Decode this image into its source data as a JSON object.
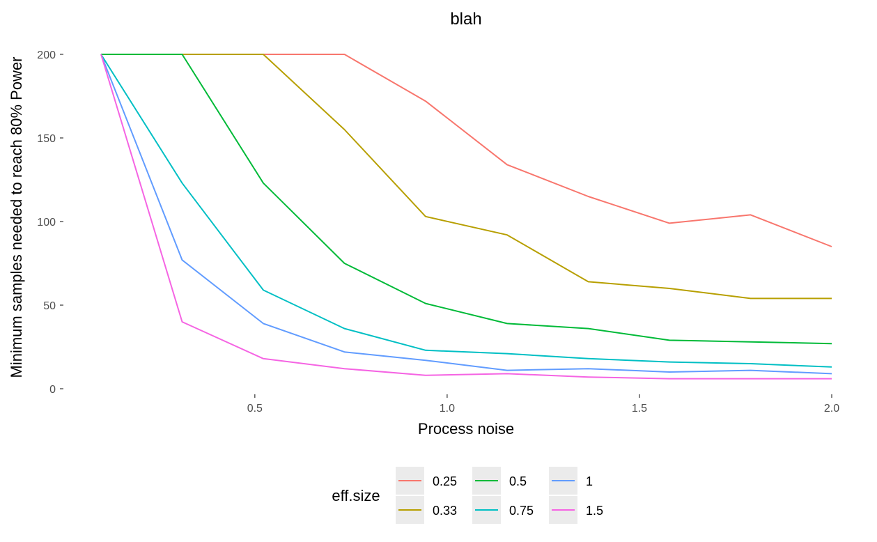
{
  "chart_data": {
    "type": "line",
    "title": "blah",
    "xlabel": "Process noise",
    "ylabel": "Minimum samples needed to reach 80% Power",
    "x": [
      0.1,
      0.311,
      0.522,
      0.733,
      0.944,
      1.156,
      1.367,
      1.578,
      1.789,
      2.0
    ],
    "xlim": [
      0.1,
      2.0
    ],
    "ylim": [
      0,
      200
    ],
    "xticks": [
      0.5,
      1.0,
      1.5,
      2.0
    ],
    "xtick_labels": [
      "0.5",
      "1.0",
      "1.5",
      "2.0"
    ],
    "yticks": [
      0,
      50,
      100,
      150,
      200
    ],
    "ytick_labels": [
      "0",
      "50",
      "100",
      "150",
      "200"
    ],
    "grid": false,
    "legend": {
      "title": "eff.size",
      "position": "bottom"
    },
    "series": [
      {
        "name": "0.25",
        "color": "#F8766D",
        "values": [
          200,
          200,
          200,
          200,
          172,
          134,
          115,
          99,
          104,
          85
        ]
      },
      {
        "name": "0.33",
        "color": "#B79F00",
        "values": [
          200,
          200,
          200,
          155,
          103,
          92,
          64,
          60,
          54,
          54
        ]
      },
      {
        "name": "0.5",
        "color": "#00BA38",
        "values": [
          200,
          200,
          123,
          75,
          51,
          39,
          36,
          29,
          28,
          27
        ]
      },
      {
        "name": "0.75",
        "color": "#00BFC4",
        "values": [
          200,
          123,
          59,
          36,
          23,
          21,
          18,
          16,
          15,
          13
        ]
      },
      {
        "name": "1",
        "color": "#619CFF",
        "values": [
          200,
          77,
          39,
          22,
          17,
          11,
          12,
          10,
          11,
          9
        ]
      },
      {
        "name": "1.5",
        "color": "#F564E3",
        "values": [
          200,
          40,
          18,
          12,
          8,
          9,
          7,
          6,
          6,
          6
        ]
      }
    ]
  }
}
